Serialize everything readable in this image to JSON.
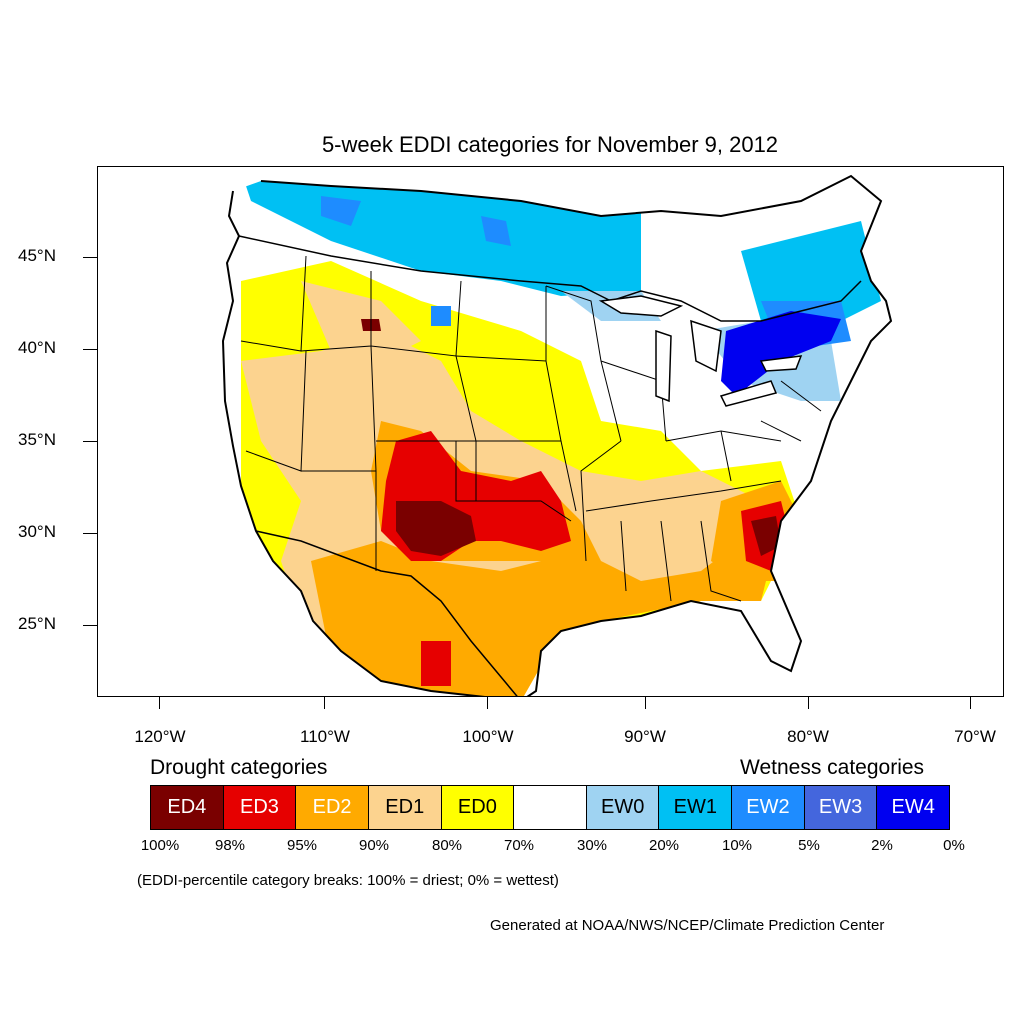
{
  "title": "5-week EDDI categories for November 9, 2012",
  "lat_labels": [
    "45°N",
    "40°N",
    "35°N",
    "30°N",
    "25°N"
  ],
  "lon_labels": [
    "120°W",
    "110°W",
    "100°W",
    "90°W",
    "80°W",
    "70°W"
  ],
  "legend": {
    "drought_heading": "Drought categories",
    "wetness_heading": "Wetness categories",
    "categories": [
      {
        "label": "ED4",
        "color": "#7a0000",
        "text_color": "#ffffff"
      },
      {
        "label": "ED3",
        "color": "#e60000",
        "text_color": "#ffffff"
      },
      {
        "label": "ED2",
        "color": "#ffaa00",
        "text_color": "#ffffff"
      },
      {
        "label": "ED1",
        "color": "#fcd38f",
        "text_color": "#000000"
      },
      {
        "label": "ED0",
        "color": "#ffff00",
        "text_color": "#000000"
      },
      {
        "label": "",
        "color": "#ffffff",
        "text_color": "#000000"
      },
      {
        "label": "EW0",
        "color": "#9fd3f2",
        "text_color": "#000000"
      },
      {
        "label": "EW1",
        "color": "#00c0f3",
        "text_color": "#000000"
      },
      {
        "label": "EW2",
        "color": "#1e8cff",
        "text_color": "#ffffff"
      },
      {
        "label": "EW3",
        "color": "#4466dd",
        "text_color": "#ffffff"
      },
      {
        "label": "EW4",
        "color": "#0000f0",
        "text_color": "#ffffff"
      }
    ],
    "percentiles": [
      "100%",
      "98%",
      "95%",
      "90%",
      "80%",
      "70%",
      "30%",
      "20%",
      "10%",
      "5%",
      "2%",
      "0%"
    ]
  },
  "note": "(EDDI-percentile category breaks: 100% = driest; 0% = wettest)",
  "credit": "Generated at NOAA/NWS/NCEP/Climate Prediction Center"
}
